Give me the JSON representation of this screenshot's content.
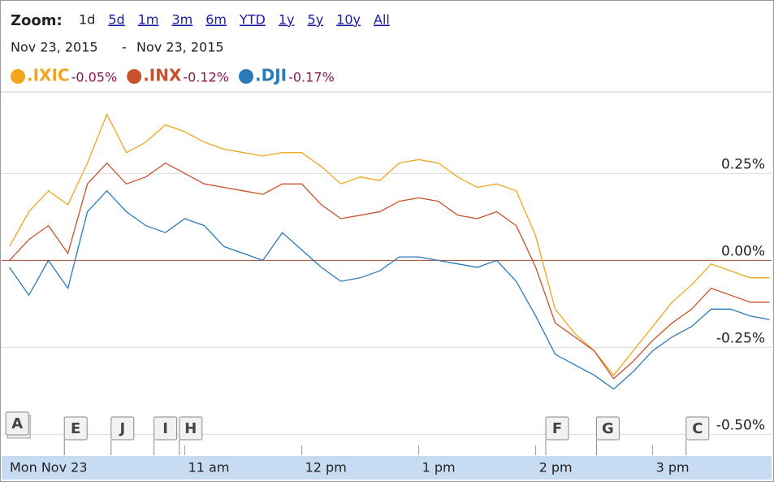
{
  "zoom": {
    "label": "Zoom:",
    "options": [
      "1d",
      "5d",
      "1m",
      "3m",
      "6m",
      "YTD",
      "1y",
      "5y",
      "10y",
      "All"
    ]
  },
  "range": {
    "from": "Nov 23, 2015",
    "separator": "-",
    "to": "Nov 23, 2015"
  },
  "chart_data": {
    "type": "line",
    "x": [
      570,
      580,
      590,
      600,
      610,
      620,
      630,
      640,
      650,
      660,
      670,
      680,
      690,
      700,
      710,
      720,
      730,
      740,
      750,
      760,
      770,
      780,
      790,
      800,
      810,
      820,
      830,
      840,
      850,
      860,
      870,
      880,
      890,
      900,
      910,
      920,
      930,
      940,
      950,
      960
    ],
    "series": [
      {
        "name": ".IXIC",
        "color": "#f2a51e",
        "change": {
          "value": -0.05,
          "label": "-0.05%"
        },
        "values": [
          0.04,
          0.14,
          0.2,
          0.16,
          0.28,
          0.42,
          0.31,
          0.34,
          0.39,
          0.37,
          0.34,
          0.32,
          0.31,
          0.3,
          0.31,
          0.31,
          0.27,
          0.22,
          0.24,
          0.23,
          0.28,
          0.29,
          0.28,
          0.24,
          0.21,
          0.22,
          0.2,
          0.07,
          -0.14,
          -0.21,
          -0.26,
          -0.33,
          -0.26,
          -0.19,
          -0.12,
          -0.07,
          -0.01,
          -0.03,
          -0.05,
          -0.05
        ]
      },
      {
        "name": ".INX",
        "color": "#c9502a",
        "change": {
          "value": -0.12,
          "label": "-0.12%"
        },
        "values": [
          0.0,
          0.06,
          0.1,
          0.02,
          0.22,
          0.28,
          0.22,
          0.24,
          0.28,
          0.25,
          0.22,
          0.21,
          0.2,
          0.19,
          0.22,
          0.22,
          0.16,
          0.12,
          0.13,
          0.14,
          0.17,
          0.18,
          0.17,
          0.13,
          0.12,
          0.14,
          0.1,
          -0.02,
          -0.18,
          -0.22,
          -0.26,
          -0.34,
          -0.29,
          -0.23,
          -0.18,
          -0.14,
          -0.08,
          -0.1,
          -0.12,
          -0.12
        ]
      },
      {
        "name": ".DJI",
        "color": "#2a7ab8",
        "change": {
          "value": -0.17,
          "label": "-0.17%"
        },
        "values": [
          -0.02,
          -0.1,
          0.0,
          -0.08,
          0.14,
          0.2,
          0.14,
          0.1,
          0.08,
          0.12,
          0.1,
          0.04,
          0.02,
          0.0,
          0.08,
          0.03,
          -0.02,
          -0.06,
          -0.05,
          -0.03,
          0.01,
          0.01,
          0.0,
          -0.01,
          -0.02,
          0.0,
          -0.06,
          -0.16,
          -0.27,
          -0.3,
          -0.33,
          -0.37,
          -0.32,
          -0.26,
          -0.22,
          -0.19,
          -0.14,
          -0.14,
          -0.16,
          -0.17
        ]
      }
    ],
    "xlim": [
      566,
      961
    ],
    "ylim": [
      -0.56,
      0.48
    ],
    "yticks": [
      {
        "value": -0.5,
        "label": "-0.50%"
      },
      {
        "value": -0.25,
        "label": "-0.25%"
      },
      {
        "value": 0,
        "label": "0.00%"
      },
      {
        "value": 0.25,
        "label": "0.25%"
      }
    ],
    "xticks": [
      {
        "value": 570,
        "label": "Mon Nov 23"
      },
      {
        "value": 660,
        "label": "11 am"
      },
      {
        "value": 720,
        "label": "12 pm"
      },
      {
        "value": 780,
        "label": "1 pm"
      },
      {
        "value": 840,
        "label": "2 pm"
      },
      {
        "value": 900,
        "label": "3 pm"
      }
    ],
    "grid": true,
    "flags": [
      {
        "label": "A",
        "x": 574
      },
      {
        "label": "E",
        "x": 604
      },
      {
        "label": "J",
        "x": 628
      },
      {
        "label": "I",
        "x": 650
      },
      {
        "label": "H",
        "x": 663
      },
      {
        "label": "F",
        "x": 851
      },
      {
        "label": "G",
        "x": 877
      },
      {
        "label": "C",
        "x": 923
      }
    ]
  }
}
